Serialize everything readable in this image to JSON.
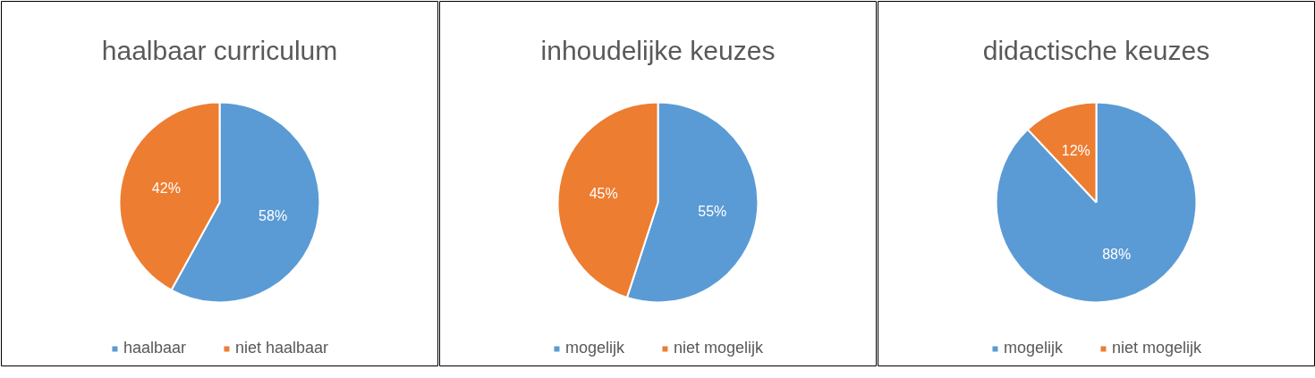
{
  "chart_data": [
    {
      "type": "pie",
      "title": "haalbaar curriculum",
      "categories": [
        "haalbaar",
        "niet haalbaar"
      ],
      "values": [
        58,
        42
      ],
      "colors": [
        "#5b9bd5",
        "#ed7d31"
      ],
      "value_labels": [
        "58%",
        "42%"
      ],
      "legend": "bottom"
    },
    {
      "type": "pie",
      "title": "inhoudelijke keuzes",
      "categories": [
        "mogelijk",
        "niet mogelijk"
      ],
      "values": [
        55,
        45
      ],
      "colors": [
        "#5b9bd5",
        "#ed7d31"
      ],
      "value_labels": [
        "55%",
        "45%"
      ],
      "legend": "bottom"
    },
    {
      "type": "pie",
      "title": "didactische keuzes",
      "categories": [
        "mogelijk",
        "niet mogelijk"
      ],
      "values": [
        88,
        12
      ],
      "colors": [
        "#5b9bd5",
        "#ed7d31"
      ],
      "value_labels": [
        "88%",
        "12%"
      ],
      "legend": "bottom"
    }
  ]
}
